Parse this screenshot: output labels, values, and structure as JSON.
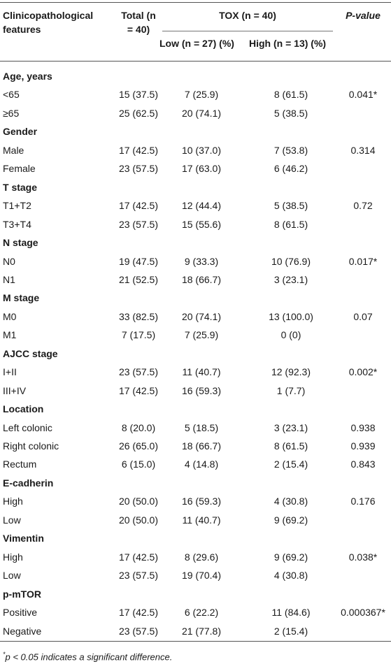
{
  "header": {
    "col1_line1": "Clinicopathological",
    "col1_line2": "features",
    "total_line1": "Total (n",
    "total_line2": "= 40)",
    "tox": "TOX (n = 40)",
    "low": "Low (n = 27) (%)",
    "high": "High (n = 13) (%)",
    "pvalue": "P-value"
  },
  "sections": [
    {
      "title": "Age, years",
      "rows": [
        {
          "label": "<65",
          "total": "15 (37.5)",
          "low": "7 (25.9)",
          "high": "8 (61.5)",
          "p": "0.041*"
        },
        {
          "label": "≥65",
          "total": "25 (62.5)",
          "low": "20 (74.1)",
          "high": "5 (38.5)",
          "p": ""
        }
      ]
    },
    {
      "title": "Gender",
      "rows": [
        {
          "label": "Male",
          "total": "17 (42.5)",
          "low": "10 (37.0)",
          "high": "7 (53.8)",
          "p": "0.314"
        },
        {
          "label": "Female",
          "total": "23 (57.5)",
          "low": "17 (63.0)",
          "high": "6 (46.2)",
          "p": ""
        }
      ]
    },
    {
      "title": "T stage",
      "rows": [
        {
          "label": "T1+T2",
          "total": "17 (42.5)",
          "low": "12 (44.4)",
          "high": "5 (38.5)",
          "p": "0.72"
        },
        {
          "label": "T3+T4",
          "total": "23 (57.5)",
          "low": "15 (55.6)",
          "high": "8 (61.5)",
          "p": ""
        }
      ]
    },
    {
      "title": "N stage",
      "rows": [
        {
          "label": "N0",
          "total": "19 (47.5)",
          "low": "9 (33.3)",
          "high": "10 (76.9)",
          "p": "0.017*"
        },
        {
          "label": "N1",
          "total": "21 (52.5)",
          "low": "18 (66.7)",
          "high": "3 (23.1)",
          "p": ""
        }
      ]
    },
    {
      "title": "M stage",
      "rows": [
        {
          "label": "M0",
          "total": "33 (82.5)",
          "low": "20 (74.1)",
          "high": "13 (100.0)",
          "p": "0.07"
        },
        {
          "label": "M1",
          "total": "7 (17.5)",
          "low": "7 (25.9)",
          "high": "0 (0)",
          "p": ""
        }
      ]
    },
    {
      "title": "AJCC stage",
      "rows": [
        {
          "label": "I+II",
          "total": "23 (57.5)",
          "low": "11 (40.7)",
          "high": "12 (92.3)",
          "p": "0.002*"
        },
        {
          "label": "III+IV",
          "total": "17 (42.5)",
          "low": "16 (59.3)",
          "high": "1 (7.7)",
          "p": ""
        }
      ]
    },
    {
      "title": "Location",
      "rows": [
        {
          "label": "Left colonic",
          "total": "8 (20.0)",
          "low": "5 (18.5)",
          "high": "3 (23.1)",
          "p": "0.938"
        },
        {
          "label": "Right colonic",
          "total": "26 (65.0)",
          "low": "18 (66.7)",
          "high": "8 (61.5)",
          "p": "0.939"
        },
        {
          "label": "Rectum",
          "total": "6 (15.0)",
          "low": "4 (14.8)",
          "high": "2 (15.4)",
          "p": "0.843"
        }
      ]
    },
    {
      "title": "E-cadherin",
      "rows": [
        {
          "label": "High",
          "total": "20 (50.0)",
          "low": "16 (59.3)",
          "high": "4 (30.8)",
          "p": "0.176"
        },
        {
          "label": "Low",
          "total": "20 (50.0)",
          "low": "11 (40.7)",
          "high": "9 (69.2)",
          "p": ""
        }
      ]
    },
    {
      "title": "Vimentin",
      "rows": [
        {
          "label": "High",
          "total": "17 (42.5)",
          "low": "8 (29.6)",
          "high": "9 (69.2)",
          "p": "0.038*"
        },
        {
          "label": "Low",
          "total": "23 (57.5)",
          "low": "19 (70.4)",
          "high": "4 (30.8)",
          "p": ""
        }
      ]
    },
    {
      "title": "p-mTOR",
      "rows": [
        {
          "label": "Positive",
          "total": "17 (42.5)",
          "low": "6 (22.2)",
          "high": "11 (84.6)",
          "p": "0.000367*"
        },
        {
          "label": "Negative",
          "total": "23 (57.5)",
          "low": "21 (77.8)",
          "high": "2 (15.4)",
          "p": ""
        }
      ]
    }
  ],
  "footnote": {
    "marker": "*",
    "text": "p < 0.05 indicates a significant difference."
  }
}
